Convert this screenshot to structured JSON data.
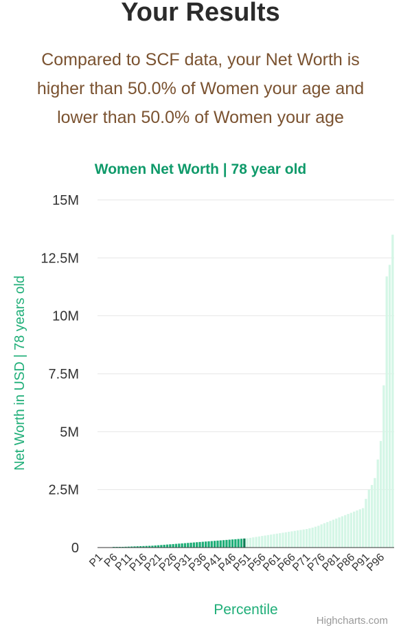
{
  "page": {
    "heading": "Your Results",
    "summary_lines": [
      "Compared to SCF data, your Net Worth is",
      "higher than 50.0% of Women your age and",
      "lower than 50.0% of Women your age"
    ]
  },
  "chart_data": {
    "type": "bar",
    "title": "Women Net Worth | 78 year old",
    "xlabel": "Percentile",
    "ylabel": "Net Worth in USD | 78 years old",
    "ylim": [
      0,
      15000000
    ],
    "y_ticks": [
      {
        "value": 0,
        "label": "0"
      },
      {
        "value": 2500000,
        "label": "2.5M"
      },
      {
        "value": 5000000,
        "label": "5M"
      },
      {
        "value": 7500000,
        "label": "7.5M"
      },
      {
        "value": 10000000,
        "label": "10M"
      },
      {
        "value": 12500000,
        "label": "12.5M"
      },
      {
        "value": 15000000,
        "label": "15M"
      }
    ],
    "x_tick_labels": [
      "P1",
      "P6",
      "P11",
      "P16",
      "P21",
      "P26",
      "P31",
      "P36",
      "P41",
      "P46",
      "P51",
      "P56",
      "P61",
      "P66",
      "P71",
      "P76",
      "P81",
      "P86",
      "P91",
      "P96"
    ],
    "highlight_percentile": 50,
    "colors": {
      "below": "#1fae78",
      "at": "#0d7d55",
      "above": "#d4f6e6",
      "title": "#0f9a6a",
      "axis_label": "#1fae78",
      "grid": "#e6e6e6"
    },
    "values": [
      0,
      0,
      0,
      0,
      0,
      10000,
      20000,
      25000,
      30000,
      35000,
      40000,
      45000,
      50000,
      55000,
      60000,
      65000,
      70000,
      75000,
      80000,
      90000,
      100000,
      110000,
      120000,
      130000,
      140000,
      150000,
      160000,
      170000,
      180000,
      190000,
      200000,
      210000,
      220000,
      230000,
      240000,
      250000,
      260000,
      270000,
      280000,
      290000,
      300000,
      310000,
      320000,
      330000,
      340000,
      350000,
      360000,
      370000,
      380000,
      390000,
      400000,
      420000,
      440000,
      460000,
      480000,
      500000,
      520000,
      540000,
      560000,
      580000,
      600000,
      620000,
      640000,
      660000,
      680000,
      700000,
      720000,
      740000,
      760000,
      780000,
      800000,
      830000,
      860000,
      900000,
      940000,
      1000000,
      1050000,
      1100000,
      1150000,
      1200000,
      1250000,
      1300000,
      1350000,
      1400000,
      1450000,
      1500000,
      1550000,
      1600000,
      1650000,
      1700000,
      2100000,
      2500000,
      2700000,
      3000000,
      3800000,
      4600000,
      7000000,
      11700000,
      12200000,
      13500000
    ],
    "credit": "Highcharts.com"
  }
}
